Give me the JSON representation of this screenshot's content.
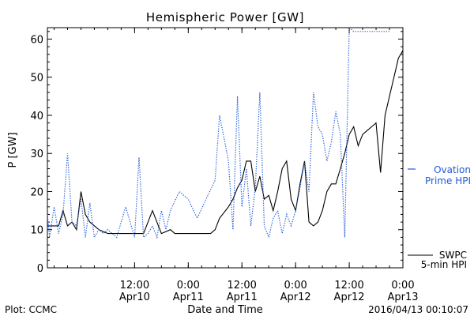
{
  "chart_data": {
    "type": "line",
    "title": "Hemispheric Power [GW]",
    "ylabel": "P [GW]",
    "xlabel": "Date and Time",
    "ylim": [
      0,
      63
    ],
    "yticks": [
      0,
      10,
      20,
      30,
      40,
      50,
      60
    ],
    "xlim": [
      "2016-04-09T16:30",
      "2016-04-13T00:00"
    ],
    "xticks": [
      {
        "time": "2016-04-10T12:00",
        "line1": "12:00",
        "line2": "Apr10"
      },
      {
        "time": "2016-04-11T00:00",
        "line1": "0:00",
        "line2": "Apr11"
      },
      {
        "time": "2016-04-11T12:00",
        "line1": "12:00",
        "line2": "Apr11"
      },
      {
        "time": "2016-04-12T00:00",
        "line1": "0:00",
        "line2": "Apr12"
      },
      {
        "time": "2016-04-12T12:00",
        "line1": "12:00",
        "line2": "Apr12"
      },
      {
        "time": "2016-04-13T00:00",
        "line1": "0:00",
        "line2": "Apr13"
      }
    ],
    "grid": false,
    "series": [
      {
        "name": "SWPC 5-min HPI",
        "label_lines": [
          "SWPC",
          "5-min HPI"
        ],
        "style": "solid",
        "color": "#000000",
        "x": [
          "2016-04-09T16:30",
          "2016-04-09T19:00",
          "2016-04-09T20:00",
          "2016-04-09T21:00",
          "2016-04-09T22:00",
          "2016-04-09T23:00",
          "2016-04-10T00:00",
          "2016-04-10T01:00",
          "2016-04-10T02:00",
          "2016-04-10T04:00",
          "2016-04-10T06:00",
          "2016-04-10T07:00",
          "2016-04-10T08:00",
          "2016-04-10T09:00",
          "2016-04-10T10:00",
          "2016-04-10T11:00",
          "2016-04-10T12:00",
          "2016-04-10T13:00",
          "2016-04-10T14:00",
          "2016-04-10T16:00",
          "2016-04-10T18:00",
          "2016-04-10T20:00",
          "2016-04-10T21:00",
          "2016-04-10T22:00",
          "2016-04-11T00:00",
          "2016-04-11T04:00",
          "2016-04-11T05:00",
          "2016-04-11T06:00",
          "2016-04-11T07:00",
          "2016-04-11T09:00",
          "2016-04-11T10:00",
          "2016-04-11T11:00",
          "2016-04-11T12:00",
          "2016-04-11T13:00",
          "2016-04-11T14:00",
          "2016-04-11T15:00",
          "2016-04-11T16:00",
          "2016-04-11T17:00",
          "2016-04-11T18:00",
          "2016-04-11T19:00",
          "2016-04-11T20:00",
          "2016-04-11T21:00",
          "2016-04-11T22:00",
          "2016-04-11T23:00",
          "2016-04-12T00:00",
          "2016-04-12T01:00",
          "2016-04-12T02:00",
          "2016-04-12T03:00",
          "2016-04-12T04:00",
          "2016-04-12T05:00",
          "2016-04-12T06:00",
          "2016-04-12T07:00",
          "2016-04-12T08:00",
          "2016-04-12T09:00",
          "2016-04-12T10:00",
          "2016-04-12T11:00",
          "2016-04-12T12:00",
          "2016-04-12T13:00",
          "2016-04-12T14:00",
          "2016-04-12T15:00",
          "2016-04-12T16:00",
          "2016-04-12T17:00",
          "2016-04-12T18:00",
          "2016-04-12T19:00",
          "2016-04-12T20:00",
          "2016-04-12T21:00",
          "2016-04-12T22:00",
          "2016-04-12T23:00",
          "2016-04-13T00:00"
        ],
        "values": [
          11,
          11,
          15,
          11,
          12,
          10,
          20,
          14,
          12,
          10,
          9,
          9,
          9,
          9,
          9,
          9,
          9,
          9,
          9,
          15,
          9,
          10,
          9,
          9,
          9,
          9,
          9,
          10,
          13,
          16,
          18,
          21,
          23,
          28,
          28,
          20,
          24,
          18,
          19,
          15,
          20,
          26,
          28,
          18,
          15,
          22,
          28,
          12,
          11,
          12,
          15,
          20,
          22,
          22,
          26,
          30,
          35,
          37,
          32,
          35,
          36,
          37,
          38,
          25,
          40,
          45,
          50,
          55,
          57
        ]
      },
      {
        "name": "Ovation Prime HPI",
        "label_lines": [
          "Ovation",
          "Prime HPI"
        ],
        "style": "dotted",
        "color": "#1f5bd8",
        "x": [
          "2016-04-09T16:30",
          "2016-04-09T17:00",
          "2016-04-09T18:00",
          "2016-04-09T19:00",
          "2016-04-09T20:00",
          "2016-04-09T21:00",
          "2016-04-09T22:00",
          "2016-04-09T23:00",
          "2016-04-10T00:00",
          "2016-04-10T01:00",
          "2016-04-10T02:00",
          "2016-04-10T03:00",
          "2016-04-10T04:00",
          "2016-04-10T05:00",
          "2016-04-10T06:00",
          "2016-04-10T08:00",
          "2016-04-10T10:00",
          "2016-04-10T12:00",
          "2016-04-10T13:00",
          "2016-04-10T14:00",
          "2016-04-10T15:00",
          "2016-04-10T16:00",
          "2016-04-10T17:00",
          "2016-04-10T18:00",
          "2016-04-10T19:00",
          "2016-04-10T20:00",
          "2016-04-10T22:00",
          "2016-04-11T00:00",
          "2016-04-11T02:00",
          "2016-04-11T04:00",
          "2016-04-11T06:00",
          "2016-04-11T07:00",
          "2016-04-11T08:00",
          "2016-04-11T09:00",
          "2016-04-11T10:00",
          "2016-04-11T11:00",
          "2016-04-11T12:00",
          "2016-04-11T13:00",
          "2016-04-11T14:00",
          "2016-04-11T15:00",
          "2016-04-11T16:00",
          "2016-04-11T17:00",
          "2016-04-11T18:00",
          "2016-04-11T19:00",
          "2016-04-11T20:00",
          "2016-04-11T21:00",
          "2016-04-11T22:00",
          "2016-04-11T23:00",
          "2016-04-12T00:00",
          "2016-04-12T01:00",
          "2016-04-12T02:00",
          "2016-04-12T03:00",
          "2016-04-12T04:00",
          "2016-04-12T05:00",
          "2016-04-12T06:00",
          "2016-04-12T07:00",
          "2016-04-12T08:00",
          "2016-04-12T09:00",
          "2016-04-12T10:00",
          "2016-04-12T11:00",
          "2016-04-12T12:00",
          "2016-04-12T13:00",
          "2016-04-12T14:00",
          "2016-04-12T15:00",
          "2016-04-12T16:00",
          "2016-04-12T17:00",
          "2016-04-12T18:00",
          "2016-04-12T19:00",
          "2016-04-12T20:00",
          "2016-04-12T21:00"
        ],
        "values": [
          14,
          8,
          16,
          9,
          14,
          30,
          12,
          11,
          18,
          8,
          17,
          8,
          10,
          9,
          10,
          8,
          16,
          8,
          29,
          8,
          9,
          11,
          8,
          15,
          10,
          15,
          20,
          18,
          13,
          18,
          23,
          40,
          34,
          28,
          10,
          45,
          16,
          26,
          11,
          21,
          46,
          11,
          8,
          13,
          15,
          9,
          14,
          11,
          15,
          21,
          28,
          20,
          46,
          37,
          35,
          28,
          33,
          41,
          35,
          8,
          63,
          62,
          62,
          62,
          62,
          62,
          62,
          62,
          62,
          62
        ]
      }
    ]
  },
  "footer": {
    "left": "Plot: CCMC",
    "right": "2016/04/13 00:10:07"
  }
}
